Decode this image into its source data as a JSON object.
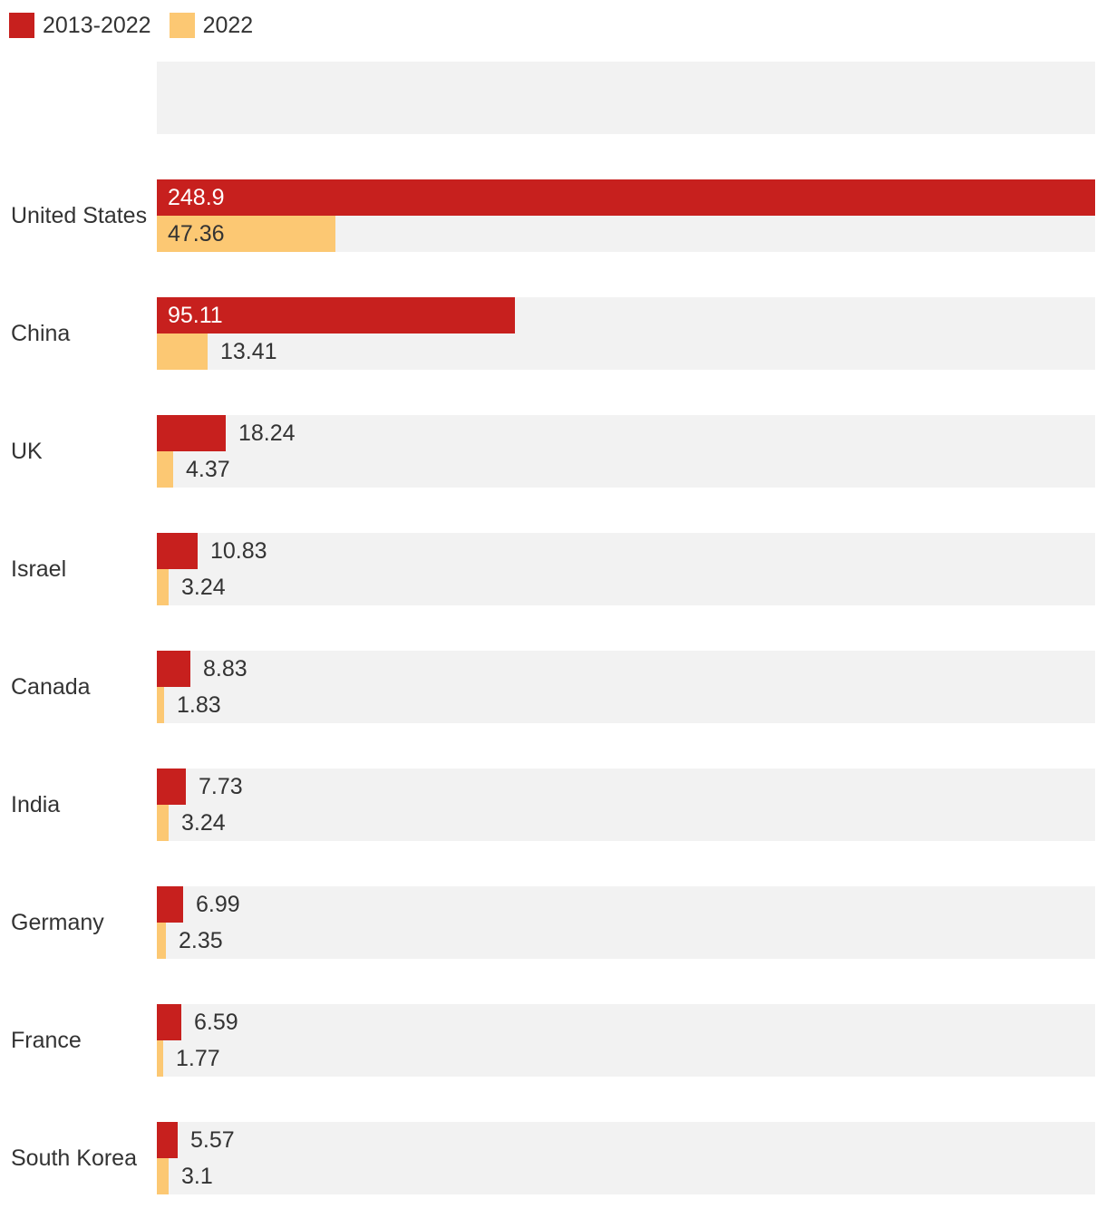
{
  "legend": {
    "items": [
      {
        "label": "2013-2022",
        "color": "#c7201e"
      },
      {
        "label": "2022",
        "color": "#fcc873"
      }
    ]
  },
  "chart_data": {
    "type": "bar",
    "orientation": "horizontal",
    "title": "",
    "categories": [
      "",
      "United States",
      "China",
      "UK",
      "Israel",
      "Canada",
      "India",
      "Germany",
      "France",
      "South Korea"
    ],
    "series": [
      {
        "name": "2013-2022",
        "color": "#c7201e",
        "label_color_inside": "#ffffff",
        "values": [
          null,
          248.9,
          95.11,
          18.24,
          10.83,
          8.83,
          7.73,
          6.99,
          6.59,
          5.57
        ],
        "labels": [
          null,
          "248.9",
          "95.11",
          "18.24",
          "10.83",
          "8.83",
          "7.73",
          "6.99",
          "6.59",
          "5.57"
        ]
      },
      {
        "name": "2022",
        "color": "#fcc873",
        "label_color_inside": "#333333",
        "values": [
          null,
          47.36,
          13.41,
          4.37,
          3.24,
          1.83,
          3.24,
          2.35,
          1.77,
          3.1
        ],
        "labels": [
          null,
          "47.36",
          "13.41",
          "4.37",
          "3.24",
          "1.83",
          "3.24",
          "2.35",
          "1.77",
          "3.1"
        ]
      }
    ],
    "xlim": [
      0,
      248.9
    ],
    "track_color": "#f2f2f2",
    "value_label_color_outside": "#333333",
    "legend_position": "top-left",
    "grid": false
  }
}
